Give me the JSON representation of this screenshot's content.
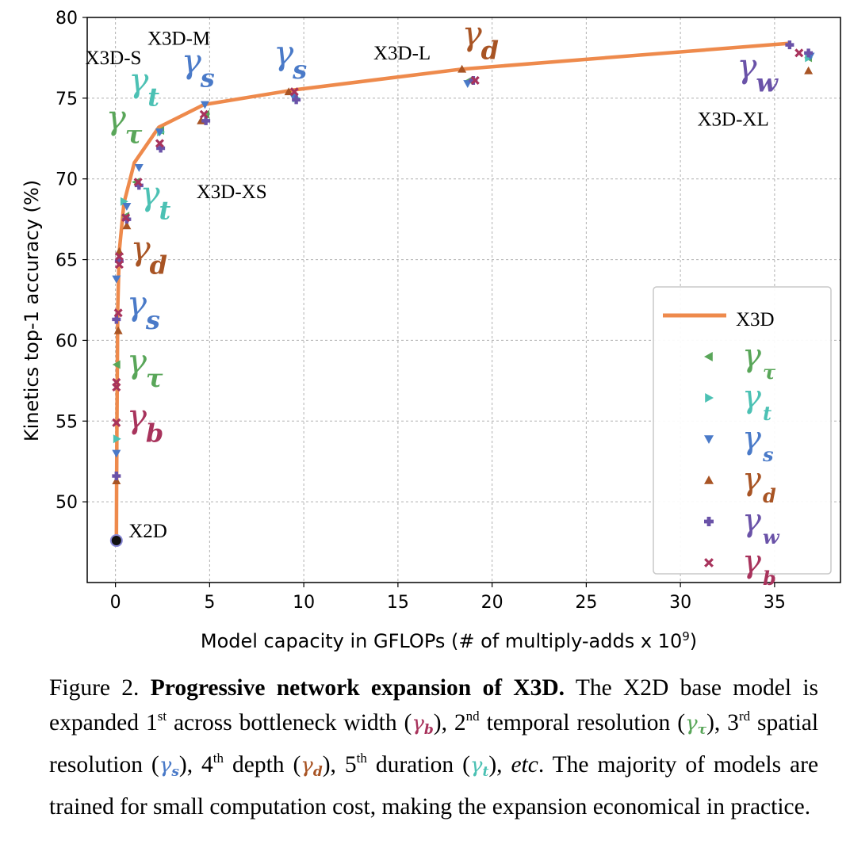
{
  "chart_data": {
    "type": "line",
    "xlabel": "Model capacity in GFLOPs (# of multiply-adds x 10",
    "xlabel_sup": "9",
    "xlabel_end": ")",
    "ylabel": "Kinetics top-1 accuracy (%)",
    "xlim": [
      -1.5,
      38.5
    ],
    "ylim": [
      45,
      80
    ],
    "x_ticks": [
      0,
      5,
      10,
      15,
      20,
      25,
      30,
      35
    ],
    "x_tick_labels": [
      "0",
      "5",
      "10",
      "15",
      "20",
      "25",
      "30",
      "35"
    ],
    "y_ticks": [
      50,
      55,
      60,
      65,
      70,
      75,
      80
    ],
    "y_tick_labels": [
      "50",
      "55",
      "60",
      "65",
      "70",
      "75",
      "80"
    ],
    "grid": true,
    "legend_position": "bottom-right",
    "main_series": {
      "name": "X3D",
      "color": "#ee8a4c",
      "points": [
        [
          0.05,
          47.6
        ],
        [
          0.06,
          51.3
        ],
        [
          0.08,
          55.0
        ],
        [
          0.1,
          58.5
        ],
        [
          0.12,
          62.0
        ],
        [
          0.2,
          65.5
        ],
        [
          0.45,
          68.5
        ],
        [
          1.0,
          71.0
        ],
        [
          2.3,
          73.2
        ],
        [
          4.7,
          74.6
        ],
        [
          9.4,
          75.5
        ],
        [
          18.4,
          76.8
        ],
        [
          35.8,
          78.4
        ]
      ]
    },
    "marker_series": [
      {
        "name": "γτ",
        "sub": "τ",
        "marker": "triangle-left",
        "color": "#59a659",
        "points": [
          [
            0.07,
            58.5
          ],
          [
            0.55,
            67.7
          ],
          [
            1.1,
            69.8
          ],
          [
            2.4,
            73.0
          ],
          [
            4.8,
            74.0
          ],
          [
            18.8,
            76.1
          ],
          [
            36.8,
            77.5
          ]
        ]
      },
      {
        "name": "γt",
        "sub": "t",
        "marker": "triangle-right",
        "color": "#4cc1b4",
        "points": [
          [
            0.07,
            53.9
          ],
          [
            0.45,
            68.6
          ],
          [
            2.4,
            72.9
          ],
          [
            9.6,
            75.0
          ],
          [
            36.8,
            77.5
          ]
        ]
      },
      {
        "name": "γs",
        "sub": "s",
        "marker": "triangle-down",
        "color": "#4a7ac8",
        "points": [
          [
            0.05,
            53.0
          ],
          [
            0.05,
            63.8
          ],
          [
            0.6,
            68.3
          ],
          [
            1.25,
            70.7
          ],
          [
            2.35,
            72.9
          ],
          [
            4.75,
            74.6
          ],
          [
            9.45,
            75.1
          ],
          [
            18.7,
            75.9
          ],
          [
            36.9,
            77.6
          ]
        ]
      },
      {
        "name": "γd",
        "sub": "d",
        "marker": "triangle-up",
        "color": "#a85424",
        "points": [
          [
            0.05,
            51.3
          ],
          [
            0.15,
            60.6
          ],
          [
            0.2,
            65.5
          ],
          [
            0.6,
            67.1
          ],
          [
            4.55,
            73.6
          ],
          [
            9.2,
            75.4
          ],
          [
            18.4,
            76.8
          ],
          [
            36.8,
            76.7
          ]
        ]
      },
      {
        "name": "γw",
        "sub": "w",
        "marker": "plus",
        "color": "#6a52a8",
        "points": [
          [
            0.05,
            51.6
          ],
          [
            0.05,
            61.3
          ],
          [
            0.2,
            64.9
          ],
          [
            0.6,
            67.5
          ],
          [
            1.25,
            69.6
          ],
          [
            2.4,
            71.9
          ],
          [
            4.8,
            73.6
          ],
          [
            9.6,
            74.9
          ],
          [
            19.0,
            76.1
          ],
          [
            35.8,
            78.3
          ],
          [
            36.8,
            77.8
          ]
        ]
      },
      {
        "name": "γb",
        "sub": "b",
        "marker": "x",
        "color": "#a8335c",
        "points": [
          [
            0.05,
            54.9
          ],
          [
            0.05,
            57.1
          ],
          [
            0.05,
            57.4
          ],
          [
            0.15,
            61.7
          ],
          [
            0.2,
            64.7
          ],
          [
            0.2,
            65.2
          ],
          [
            0.55,
            67.6
          ],
          [
            1.2,
            69.8
          ],
          [
            2.35,
            72.2
          ],
          [
            4.7,
            74.0
          ],
          [
            9.5,
            75.4
          ],
          [
            19.1,
            76.1
          ],
          [
            36.3,
            77.8
          ]
        ]
      }
    ],
    "base_point": {
      "label": "X2D",
      "x": 0.05,
      "y": 47.6,
      "color": "#111111"
    },
    "model_labels": [
      {
        "text": "X2D",
        "x": 0.7,
        "y": 47.8
      },
      {
        "text": "X3D-XS",
        "x": 4.3,
        "y": 68.8
      },
      {
        "text": "X3D-S",
        "x": -1.6,
        "y": 77.1
      },
      {
        "text": "X3D-M",
        "x": 1.7,
        "y": 78.3
      },
      {
        "text": "X3D-L",
        "x": 13.7,
        "y": 77.4
      },
      {
        "text": "X3D-XL",
        "x": 30.9,
        "y": 73.3
      }
    ],
    "gamma_annotations": [
      {
        "sym": "γ",
        "sub": "b",
        "color": "#a8335c",
        "x": 0.6,
        "y": 54.6
      },
      {
        "sym": "γ",
        "sub": "τ",
        "color": "#59a659",
        "x": 0.6,
        "y": 58.0
      },
      {
        "sym": "γ",
        "sub": "s",
        "color": "#4a7ac8",
        "x": 0.6,
        "y": 61.6
      },
      {
        "sym": "γ",
        "sub": "d",
        "color": "#a85424",
        "x": 0.8,
        "y": 65.0
      },
      {
        "sym": "γ",
        "sub": "t",
        "color": "#4cc1b4",
        "x": 1.3,
        "y": 68.4
      },
      {
        "sym": "γ",
        "sub": "τ",
        "color": "#59a659",
        "x": -0.5,
        "y": 73.1
      },
      {
        "sym": "γ",
        "sub": "t",
        "color": "#4cc1b4",
        "x": 0.7,
        "y": 75.4
      },
      {
        "sym": "γ",
        "sub": "s",
        "color": "#4a7ac8",
        "x": 3.5,
        "y": 76.6
      },
      {
        "sym": "γ",
        "sub": "s",
        "color": "#4a7ac8",
        "x": 8.4,
        "y": 77.1
      },
      {
        "sym": "γ",
        "sub": "d",
        "color": "#a85424",
        "x": 18.4,
        "y": 78.3
      },
      {
        "sym": "γ",
        "sub": "w",
        "color": "#6a52a8",
        "x": 33.0,
        "y": 76.3
      }
    ]
  },
  "caption": {
    "figure_label": "Figure 2.",
    "bold_title": "Progressive network expansion of X3D.",
    "text_1": "The X2D base model is expanded 1",
    "sup_1": "st",
    "text_2": "across bottleneck width (",
    "g1": "γ",
    "g1_sub": "b",
    "text_3": "), 2",
    "sup_2": "nd",
    "text_4": "temporal resolution (",
    "g2": "γ",
    "g2_sub": "τ",
    "text_5": "), 3",
    "sup_3": "rd",
    "text_6": "spatial resolution (",
    "g3": "γ",
    "g3_sub": "s",
    "text_7": "), 4",
    "sup_4": "th",
    "text_8": "depth (",
    "g4": "γ",
    "g4_sub": "d",
    "text_9": "), 5",
    "sup_5": "th",
    "text_10": "duration (",
    "g5": "γ",
    "g5_sub": "t",
    "text_11": "),",
    "etc": "etc",
    "text_12": ". The majority of models are trained for small computation cost, making the expansion economical in practice."
  }
}
